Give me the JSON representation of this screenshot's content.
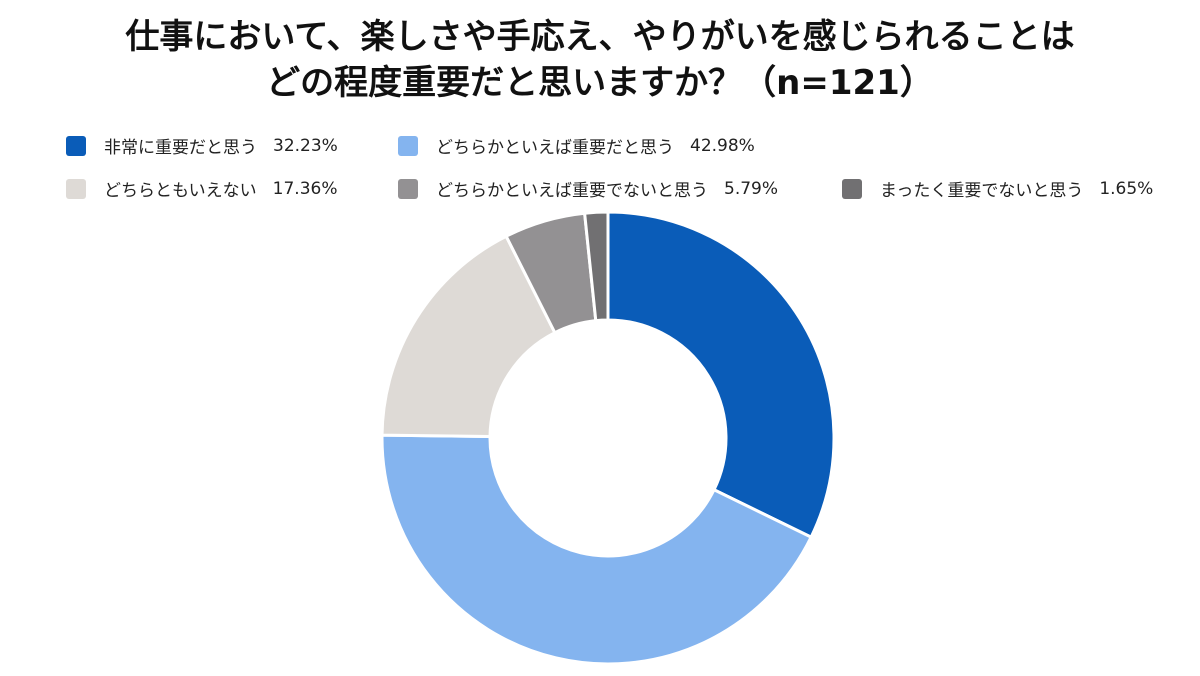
{
  "title": {
    "line1": "仕事において、楽しさや手応え、やりがいを感じられることは",
    "line2": "どの程度重要だと思いますか？（n=121）"
  },
  "chart_data": {
    "type": "pie",
    "variant": "donut",
    "legend_position": "top",
    "categories": [
      "非常に重要だと思う",
      "どちらかといえば重要だと思う",
      "どちらともいえない",
      "どちらかといえば重要でないと思う",
      "まったく重要でないと思う"
    ],
    "values": [
      32.23,
      42.98,
      17.36,
      5.79,
      1.65
    ],
    "value_labels": [
      "32.23%",
      "42.98%",
      "17.36%",
      "5.79%",
      "1.65%"
    ],
    "colors": [
      "#0a5cb8",
      "#84b4ef",
      "#dedad6",
      "#939193",
      "#717072"
    ]
  }
}
